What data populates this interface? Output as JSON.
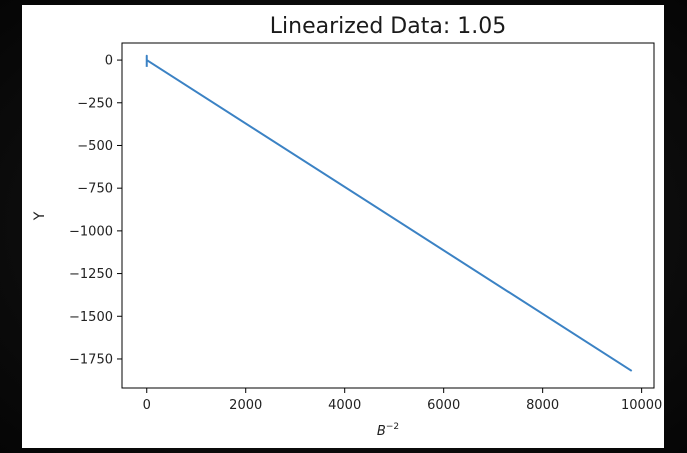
{
  "chart_data": {
    "type": "line",
    "title": "Linearized Data: 1.05",
    "xlabel": "B",
    "xlabel_superscript": "−2",
    "ylabel": "Y",
    "xlim": [
      -500,
      10250
    ],
    "ylim": [
      -1920,
      100
    ],
    "xticks": [
      0,
      2000,
      4000,
      6000,
      8000,
      10000
    ],
    "xtick_labels": [
      "0",
      "2000",
      "4000",
      "6000",
      "8000",
      "10000"
    ],
    "yticks": [
      0,
      -250,
      -500,
      -750,
      -1000,
      -1250,
      -1500,
      -1750
    ],
    "ytick_labels": [
      "0",
      "−250",
      "−500",
      "−750",
      "−1000",
      "−1250",
      "−1500",
      "−1750"
    ],
    "grid": false,
    "series": [
      {
        "color": "#3b82c4",
        "x": [
          0,
          0,
          0,
          9800
        ],
        "y": [
          -40,
          25,
          0,
          -1820
        ]
      }
    ]
  }
}
